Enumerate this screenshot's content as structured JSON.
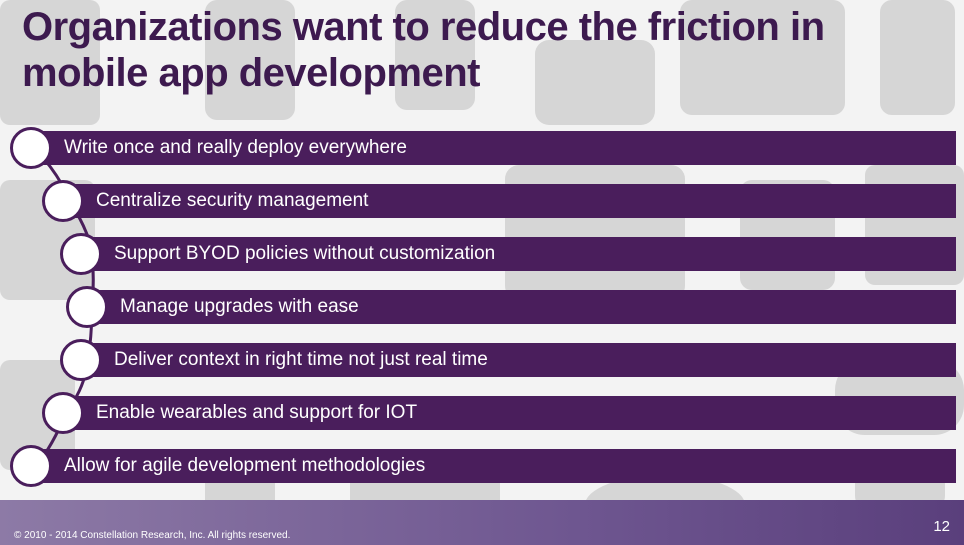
{
  "slide": {
    "title": "Organizations want to reduce the friction in mobile app development",
    "items": [
      "Write once and really deploy everywhere",
      "Centralize security management",
      "Support BYOD policies without customization",
      "Manage upgrades with ease",
      "Deliver context in right time not just real time",
      "Enable wearables and support for IOT",
      "Allow for agile development methodologies"
    ],
    "footer": {
      "copyright": "© 2010 - 2014 Constellation Research, Inc.  All rights reserved.",
      "page_number": "12"
    }
  },
  "colors": {
    "title": "#3d1a4f",
    "bar": "#4a1e5c",
    "background_devices": "#d0d0d0"
  },
  "icons": [
    "smartphone-icon",
    "tablet-icon",
    "feature-phone-icon",
    "camera-icon",
    "game-controller-icon",
    "watch-icon"
  ]
}
